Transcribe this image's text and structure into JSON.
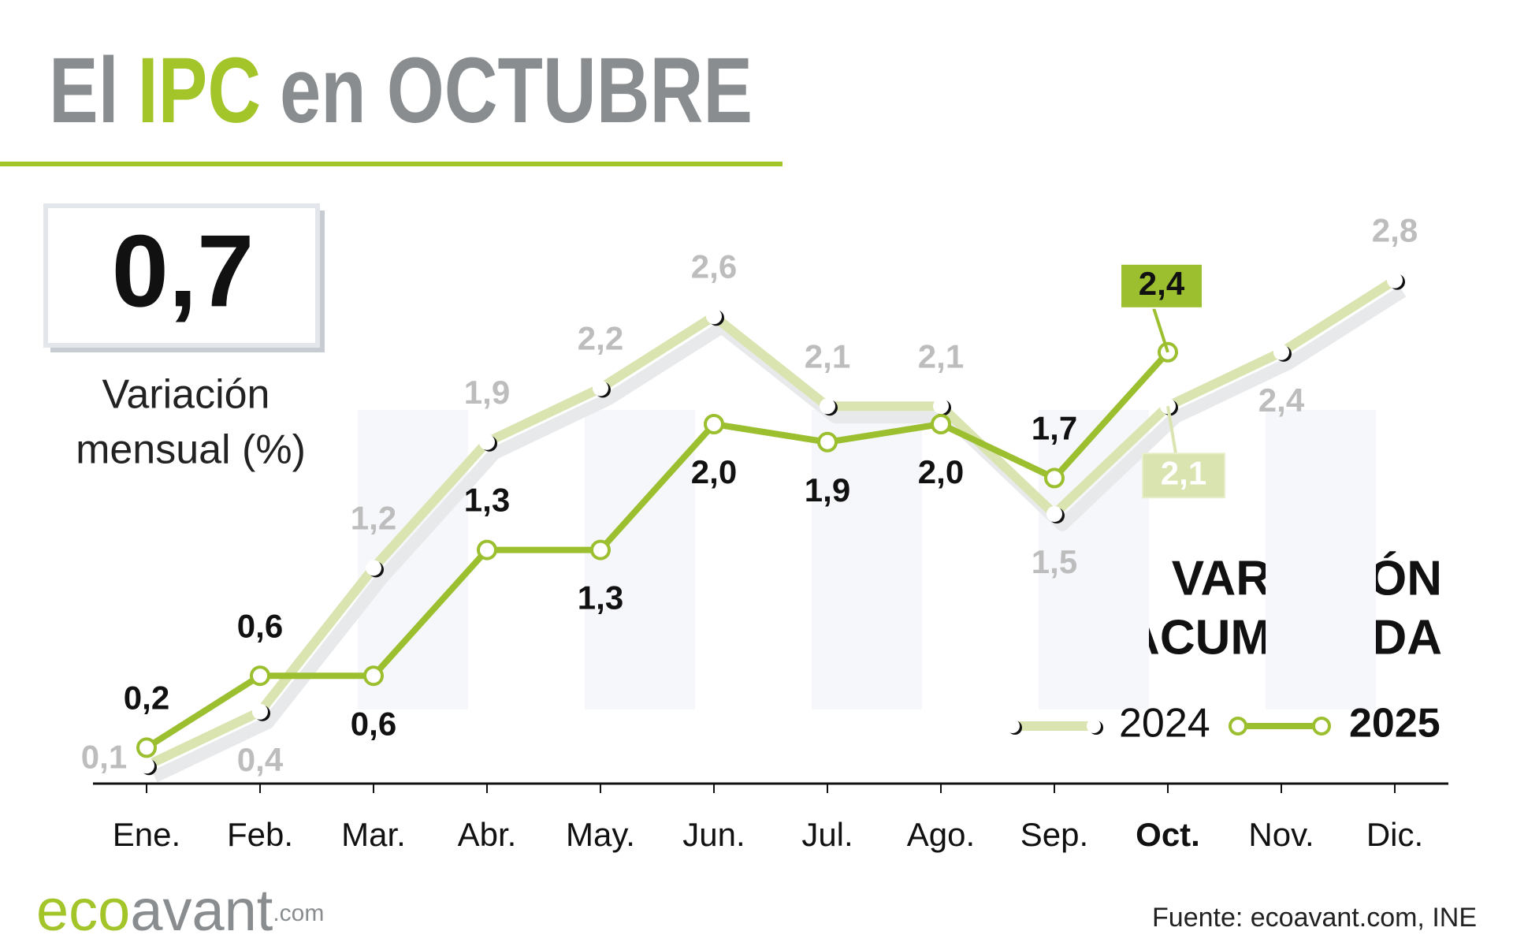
{
  "chart_data": {
    "type": "line",
    "title": [
      "El",
      "IPC",
      "en OCTUBRE"
    ],
    "subtitle": [
      "VARIACIÓN",
      "ACUMULADA"
    ],
    "categories": [
      "Ene.",
      "Feb.",
      "Mar.",
      "Abr.",
      "May.",
      "Jun.",
      "Jul.",
      "Ago.",
      "Sep.",
      "Oct.",
      "Nov.",
      "Dic."
    ],
    "highlight_category": 9,
    "series": [
      {
        "name": "2024",
        "color": "#d9e4b0",
        "values": [
          0.1,
          0.4,
          1.2,
          1.9,
          2.2,
          2.6,
          2.1,
          2.1,
          1.5,
          2.1,
          2.4,
          2.8
        ],
        "value_labels": [
          "0,1",
          "0,4",
          "1,2",
          "1,9",
          "2,2",
          "2,6",
          "2,1",
          "2,1",
          "1,5",
          "2,1",
          "2,4",
          "2,8"
        ]
      },
      {
        "name": "2025",
        "color": "#9bbf2f",
        "values": [
          0.2,
          0.6,
          0.6,
          1.3,
          1.3,
          2.0,
          1.9,
          2.0,
          1.7,
          2.4,
          null,
          null
        ],
        "value_labels": [
          "0,2",
          "0,6",
          "0,6",
          "1,3",
          "1,3",
          "2,0",
          "1,9",
          "2,0",
          "1,7",
          "2,4",
          null,
          null
        ]
      }
    ],
    "ylim": [
      0,
      3
    ]
  },
  "kpi": {
    "value": "0,7",
    "label": [
      "Variación",
      "mensual (%)"
    ]
  },
  "brand": [
    "eco",
    "avant",
    ".com"
  ],
  "source": "Fuente: ecoavant.com, INE"
}
